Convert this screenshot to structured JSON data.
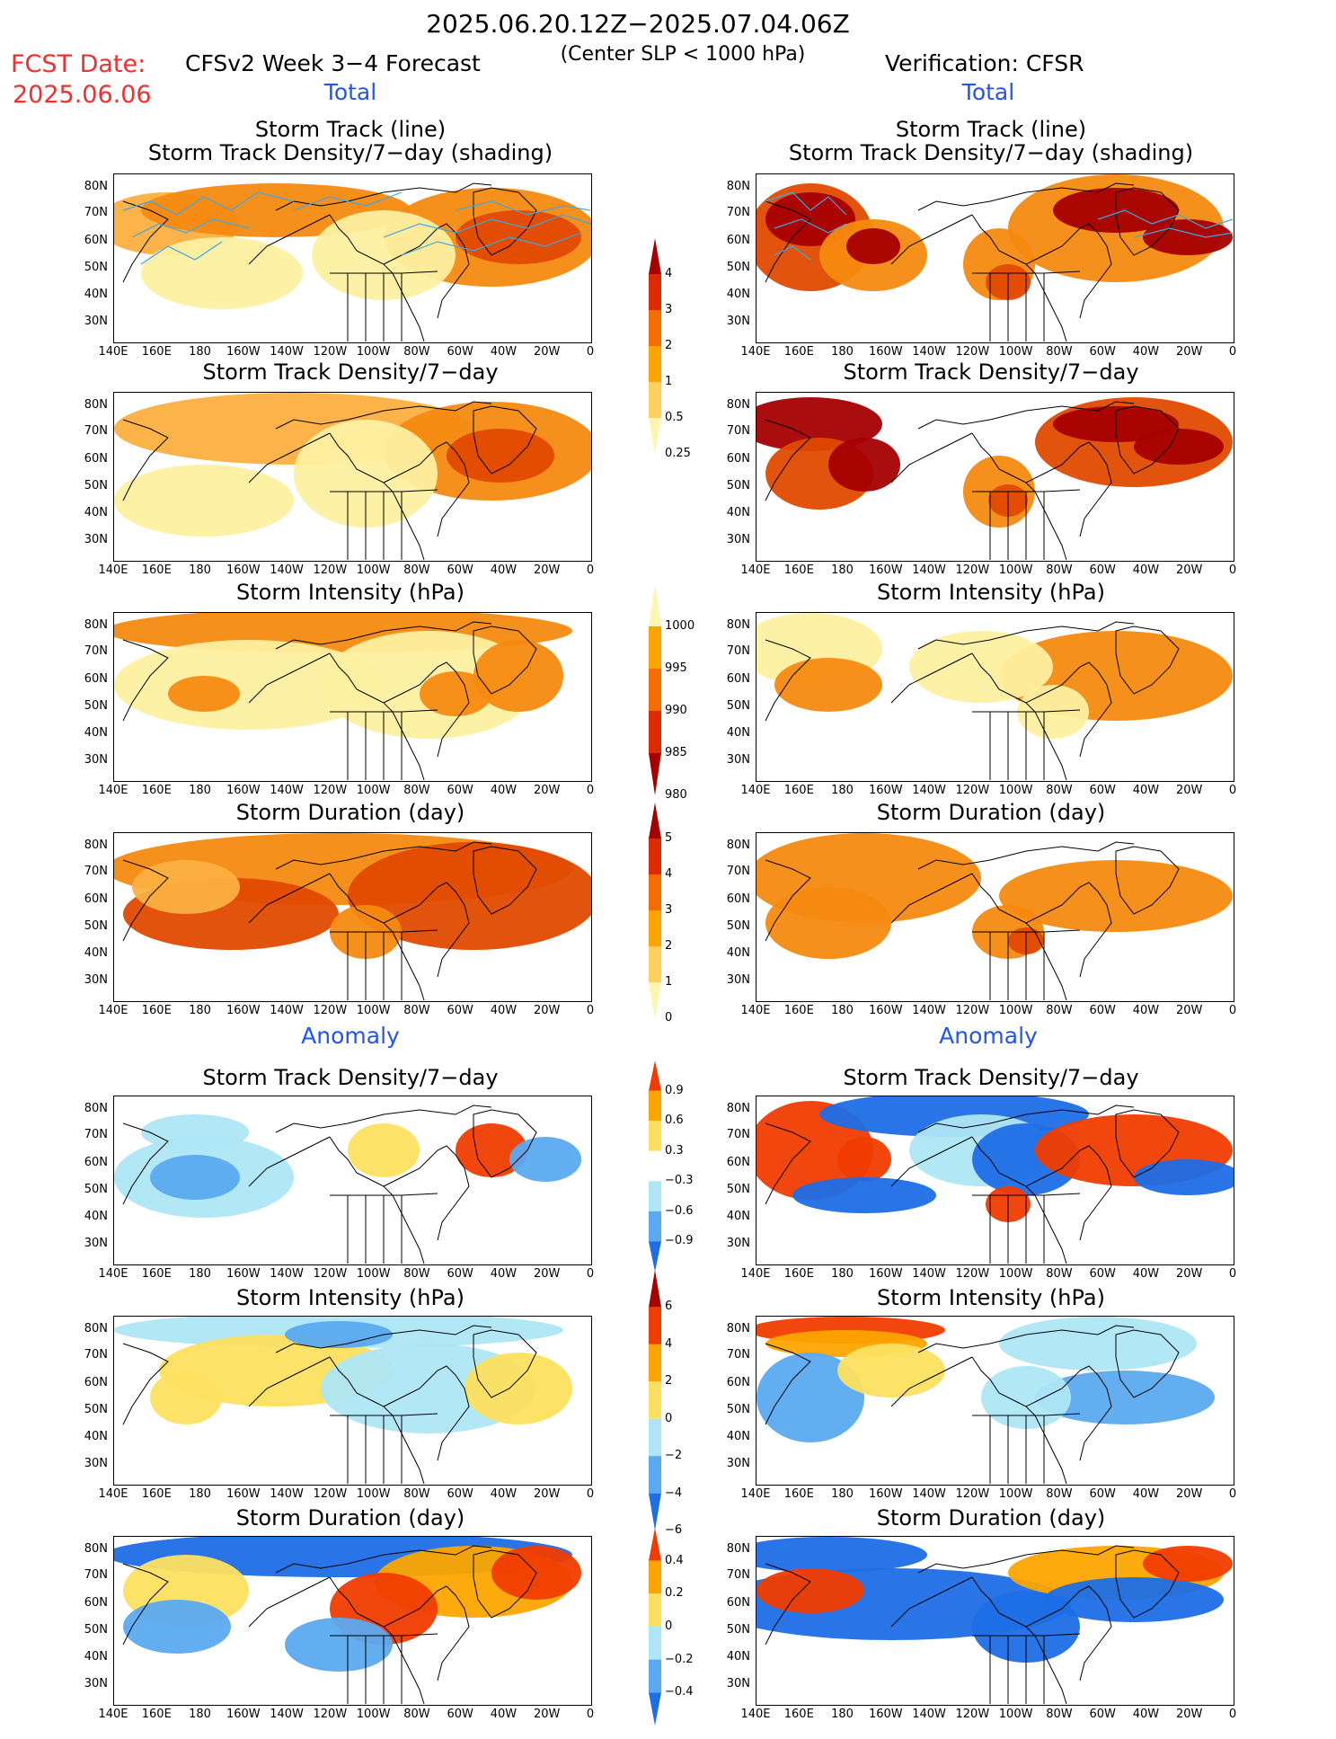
{
  "header": {
    "date_range": "2025.06.20.12Z−2025.07.04.06Z",
    "subtitle": "(Center SLP < 1000 hPa)",
    "fcst_label": "FCST Date:",
    "fcst_date": "2025.06.06",
    "model_title": "CFSv2 Week 3−4 Forecast",
    "verification": "Verification: CFSR"
  },
  "sections": {
    "total": "Total",
    "anomaly": "Anomaly"
  },
  "panel_titles": {
    "track_line": "Storm Track (line)",
    "track_density_shading": "Storm Track Density/7−day (shading)",
    "track_density": "Storm Track Density/7−day",
    "intensity": "Storm Intensity (hPa)",
    "duration": "Storm Duration (day)"
  },
  "axes": {
    "lat_labels": [
      "80N",
      "70N",
      "60N",
      "50N",
      "40N",
      "30N"
    ],
    "lon_labels": [
      "140E",
      "160E",
      "180",
      "160W",
      "140W",
      "120W",
      "100W",
      "80W",
      "60W",
      "40W",
      "20W",
      "0"
    ]
  },
  "colorbars": [
    {
      "name": "density-total",
      "labels": [
        "4",
        "3",
        "2",
        "1",
        "0.5",
        "0.25"
      ],
      "colors": [
        "#a50000",
        "#dd2a00",
        "#f56d00",
        "#fca500",
        "#fdd060",
        "#fdf5b0"
      ]
    },
    {
      "name": "intensity-total",
      "labels": [
        "1000",
        "995",
        "990",
        "985",
        "980"
      ],
      "colors": [
        "#fdf5b0",
        "#fca500",
        "#f56d00",
        "#dd2a00",
        "#a50000"
      ]
    },
    {
      "name": "duration-total",
      "labels": [
        "5",
        "4",
        "3",
        "2",
        "1",
        "0"
      ],
      "colors": [
        "#a50000",
        "#dd2a00",
        "#f56d00",
        "#fca500",
        "#fdd060",
        "#fdf5b0"
      ]
    },
    {
      "name": "density-anomaly",
      "labels": [
        "0.9",
        "0.6",
        "0.3",
        "−0.3",
        "−0.6",
        "−0.9"
      ],
      "colors": [
        "#f03c00",
        "#fca500",
        "#fde060",
        "#ffffff",
        "#aee6f5",
        "#5aaaf0",
        "#1e6ee6"
      ]
    },
    {
      "name": "intensity-anomaly",
      "labels": [
        "6",
        "4",
        "2",
        "0",
        "−2",
        "−4",
        "−6"
      ],
      "colors": [
        "#a50000",
        "#f03c00",
        "#fca500",
        "#fde060",
        "#aee6f5",
        "#5aaaf0",
        "#1e6ee6"
      ]
    },
    {
      "name": "duration-anomaly",
      "labels": [
        "0.4",
        "0.2",
        "0",
        "−0.2",
        "−0.4"
      ],
      "colors": [
        "#f03c00",
        "#fca500",
        "#fde060",
        "#aee6f5",
        "#5aaaf0",
        "#1e6ee6"
      ]
    }
  ],
  "palette": {
    "total_light": "#fdf0a0",
    "total_mid": "#fcb040",
    "total_orange": "#f58a10",
    "total_dark": "#e04a00",
    "total_darkest": "#a50000",
    "anom_pos1": "#fde060",
    "anom_pos2": "#fca500",
    "anom_pos3": "#f03c00",
    "anom_neg1": "#aee6f5",
    "anom_neg2": "#5aaaf0",
    "anom_neg3": "#1e6ee6",
    "track_line": "#3aa8e8"
  }
}
